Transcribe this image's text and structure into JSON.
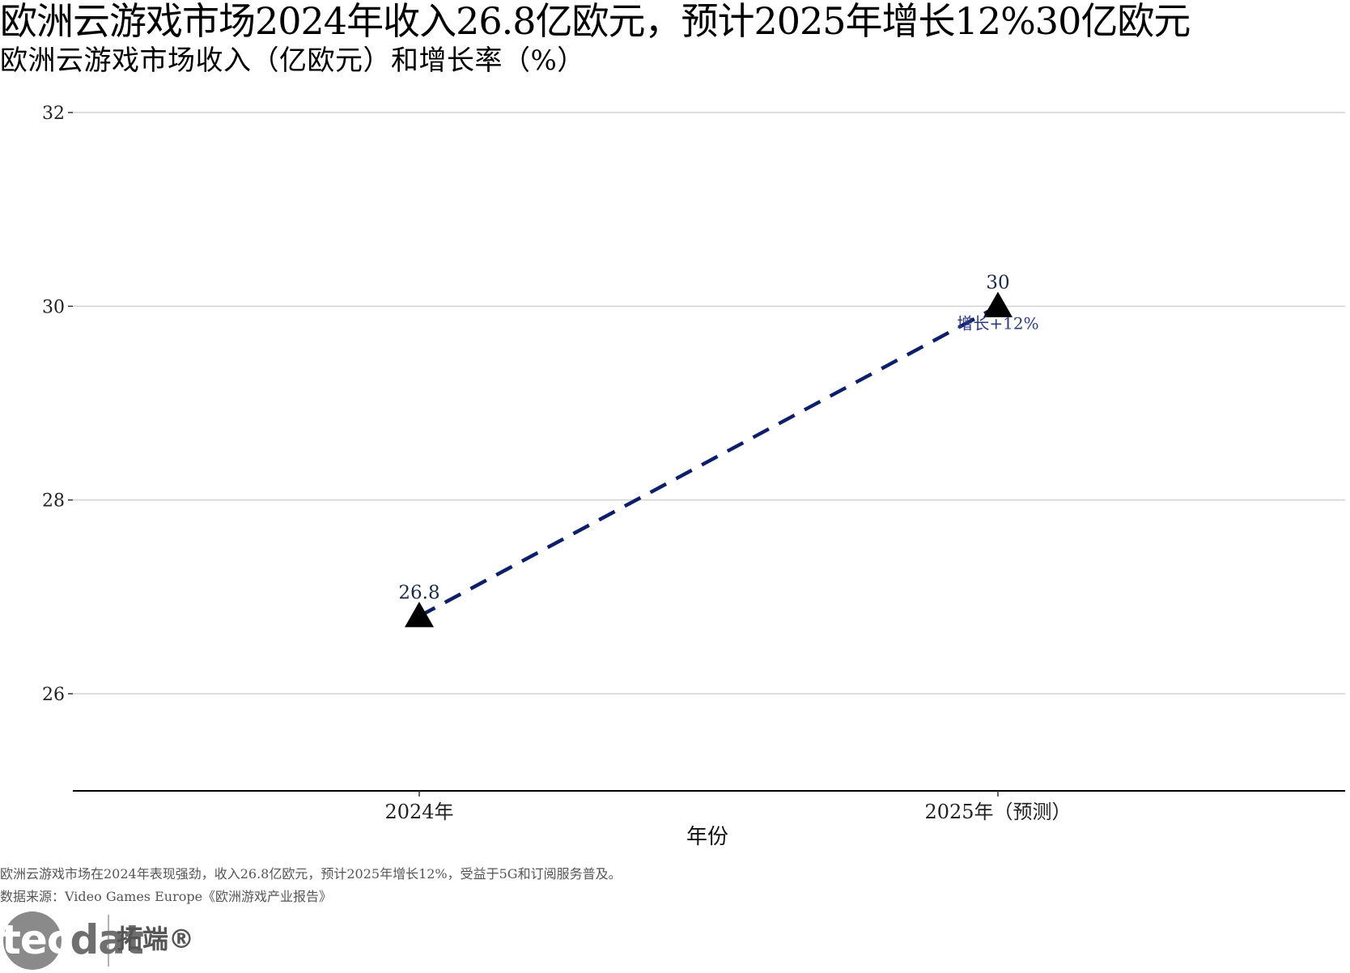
{
  "title": "欧洲云游戏市场2024年收入26.8亿欧元，预计2025年增长12%30亿欧元",
  "subtitle": "欧洲云游戏市场收入（亿欧元）和增长率（%）",
  "caption_line1": "欧洲云游戏市场在2024年表现强劲，收入26.8亿欧元，预计2025年增长12%，受益于5G和订阅服务普及。",
  "caption_line2": "数据来源：Video Games Europe《欧洲游戏产业报告》",
  "logo": {
    "text_en": "tecdat",
    "text_zh": "拓端®"
  },
  "chart_data": {
    "type": "line",
    "categories": [
      "2024年",
      "2025年（预测）"
    ],
    "values": [
      26.8,
      30
    ],
    "point_labels": [
      "26.8",
      "30"
    ],
    "annotations": [
      {
        "category": "2025年（预测）",
        "text": "增长+12%"
      }
    ],
    "xlabel": "年份",
    "ylabel": "",
    "ylim": [
      25,
      32
    ],
    "yticks": [
      26,
      28,
      30,
      32
    ],
    "grid": true,
    "line_style": "dashed",
    "marker": "triangle",
    "colors": {
      "line": "#0d1f6b",
      "marker": "#000000",
      "annotation": "#2b3a84",
      "grid": "#d3d3d3",
      "text": "#000000"
    }
  }
}
